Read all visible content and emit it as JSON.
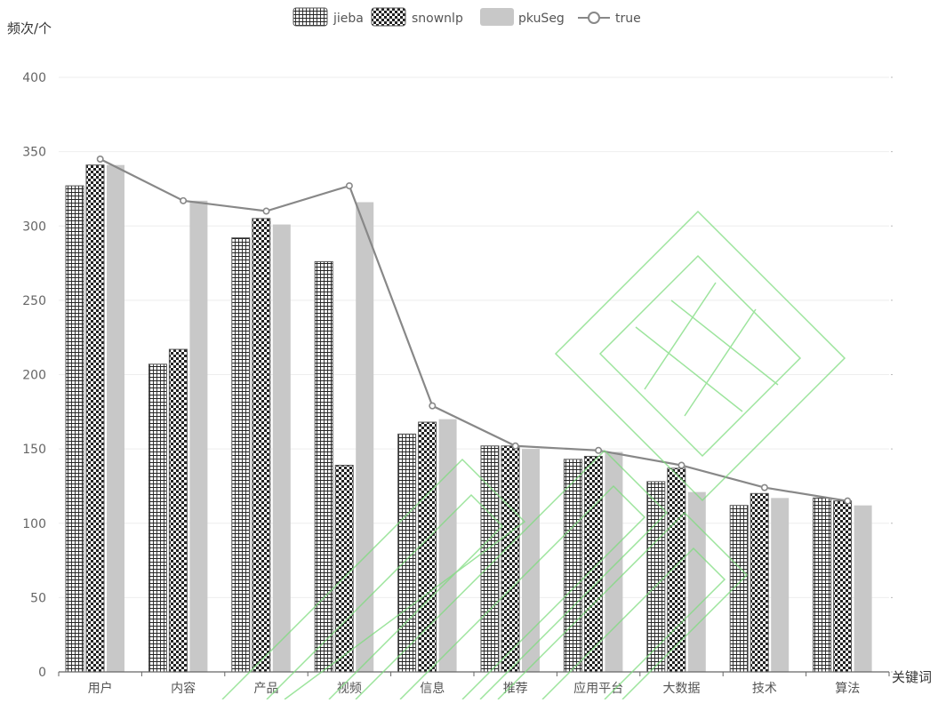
{
  "chart_data": {
    "type": "bar",
    "title": "",
    "ylabel": "频次/个",
    "xlabel": "关键词",
    "ylim": [
      0,
      400
    ],
    "yticks": [
      0,
      50,
      100,
      150,
      200,
      250,
      300,
      350,
      400
    ],
    "grid": true,
    "legend_position": "top-center",
    "categories": [
      "用户",
      "内容",
      "产品",
      "视频",
      "信息",
      "推荐",
      "应用平台",
      "大数据",
      "技术",
      "算法"
    ],
    "series": [
      {
        "name": "jieba",
        "kind": "bar",
        "pattern": "grid",
        "values": [
          327,
          207,
          292,
          276,
          160,
          152,
          143,
          128,
          112,
          117
        ]
      },
      {
        "name": "snownlp",
        "kind": "bar",
        "pattern": "checker",
        "values": [
          341,
          217,
          305,
          139,
          168,
          152,
          145,
          137,
          120,
          115
        ]
      },
      {
        "name": "pkuSeg",
        "kind": "bar",
        "pattern": "solid",
        "values": [
          341,
          317,
          301,
          316,
          170,
          150,
          148,
          121,
          117,
          112
        ]
      },
      {
        "name": "true",
        "kind": "line",
        "values": [
          345,
          317,
          310,
          327,
          179,
          152,
          149,
          139,
          124,
          115
        ]
      }
    ],
    "colors": {
      "bar_stroke": "#555555",
      "pattern_ink": "#222222",
      "pkuseg_fill": "#c8c8c8",
      "line": "#888888",
      "grid": "#eeeeee",
      "axis": "#666666",
      "watermark": "#7ddc7d"
    }
  }
}
